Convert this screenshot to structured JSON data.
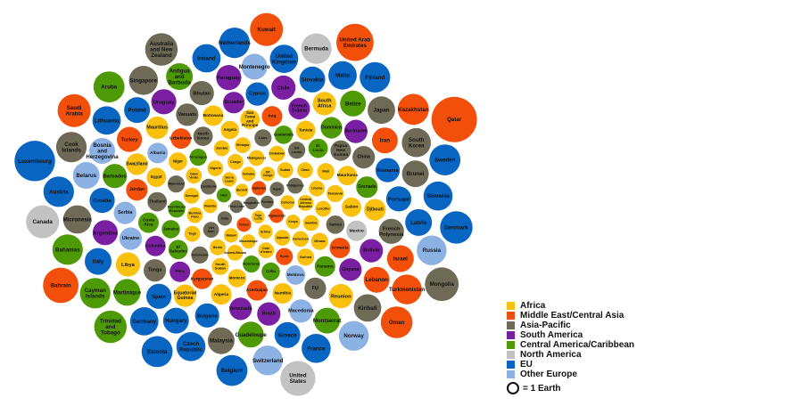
{
  "chart_data": {
    "type": "bubble",
    "legend": {
      "position": "bottom-right",
      "earth_label": "= 1 Earth",
      "regions": [
        {
          "key": "africa",
          "name": "Africa",
          "color": "#F9C10E"
        },
        {
          "key": "mideast",
          "name": "Middle East/Central Asia",
          "color": "#F2500A"
        },
        {
          "key": "asia",
          "name": "Asia-Pacific",
          "color": "#6E6A55"
        },
        {
          "key": "sa",
          "name": "South America",
          "color": "#7A1FA2"
        },
        {
          "key": "ca",
          "name": "Central America/Caribbean",
          "color": "#4E9A06"
        },
        {
          "key": "na",
          "name": "North America",
          "color": "#C2C2C2"
        },
        {
          "key": "eu",
          "name": "EU",
          "color": "#0865C2"
        },
        {
          "key": "oeu",
          "name": "Other Europe",
          "color": "#8CB1E3"
        }
      ]
    },
    "bubbles": [
      {
        "name": "Qatar",
        "region": "mideast",
        "size": 4.9
      },
      {
        "name": "Bahrain",
        "region": "mideast",
        "size": 3.0
      },
      {
        "name": "United Arab Emirates",
        "region": "mideast",
        "size": 3.3
      },
      {
        "name": "Kuwait",
        "region": "mideast",
        "size": 2.6
      },
      {
        "name": "Saudi Arabia",
        "region": "mideast",
        "size": 2.6
      },
      {
        "name": "Kazakhstan",
        "region": "mideast",
        "size": 2.3
      },
      {
        "name": "Oman",
        "region": "mideast",
        "size": 2.4
      },
      {
        "name": "Turkmenistan",
        "region": "mideast",
        "size": 2.1
      },
      {
        "name": "Israel",
        "region": "mideast",
        "size": 1.7
      },
      {
        "name": "Iran",
        "region": "mideast",
        "size": 1.6
      },
      {
        "name": "Lebanon",
        "region": "mideast",
        "size": 1.6
      },
      {
        "name": "Turkey",
        "region": "mideast",
        "size": 1.5
      },
      {
        "name": "Armenia",
        "region": "mideast",
        "size": 1.0
      },
      {
        "name": "Kyrgyzstan",
        "region": "mideast",
        "size": 1.0
      },
      {
        "name": "Uzbekistan",
        "region": "mideast",
        "size": 1.0
      },
      {
        "name": "Azerbaijan",
        "region": "mideast",
        "size": 1.0
      },
      {
        "name": "Jordan",
        "region": "mideast",
        "size": 1.1
      },
      {
        "name": "Iraq",
        "region": "mideast",
        "size": 1.0
      },
      {
        "name": "Syria",
        "region": "mideast",
        "size": 0.7
      },
      {
        "name": "Tajikistan",
        "region": "mideast",
        "size": 0.5
      },
      {
        "name": "Yemen",
        "region": "mideast",
        "size": 0.5
      },
      {
        "name": "Afghanistan",
        "region": "mideast",
        "size": 0.5
      },
      {
        "name": "Aruba",
        "region": "ca",
        "size": 2.3
      },
      {
        "name": "Trinidad and Tobago",
        "region": "ca",
        "size": 2.5
      },
      {
        "name": "Cayman Islands",
        "region": "ca",
        "size": 2.2
      },
      {
        "name": "Bahamas",
        "region": "ca",
        "size": 2.2
      },
      {
        "name": "Belize",
        "region": "ca",
        "size": 1.6
      },
      {
        "name": "Barbados",
        "region": "ca",
        "size": 1.4
      },
      {
        "name": "Guadeloupe",
        "region": "ca",
        "size": 1.6
      },
      {
        "name": "Martinique",
        "region": "ca",
        "size": 1.7
      },
      {
        "name": "Montserrat",
        "region": "ca",
        "size": 1.6
      },
      {
        "name": "Antigua and Barbuda",
        "region": "ca",
        "size": 1.7
      },
      {
        "name": "Grenada",
        "region": "ca",
        "size": 1.1
      },
      {
        "name": "Panama",
        "region": "ca",
        "size": 1.0
      },
      {
        "name": "Dominica",
        "region": "ca",
        "size": 1.1
      },
      {
        "name": "Costa Rica",
        "region": "ca",
        "size": 1.0
      },
      {
        "name": "Cuba",
        "region": "ca",
        "size": 0.8
      },
      {
        "name": "El Salvador",
        "region": "ca",
        "size": 0.9
      },
      {
        "name": "St. Lucia",
        "region": "ca",
        "size": 0.9
      },
      {
        "name": "Jamaica",
        "region": "ca",
        "size": 0.8
      },
      {
        "name": "Guatemala",
        "region": "ca",
        "size": 0.8
      },
      {
        "name": "Honduras",
        "region": "ca",
        "size": 0.7
      },
      {
        "name": "Haiti",
        "region": "ca",
        "size": 0.5
      },
      {
        "name": "Dominican Republic",
        "region": "ca",
        "size": 0.7
      },
      {
        "name": "Nicaragua",
        "region": "ca",
        "size": 0.7
      },
      {
        "name": "Australia and New Zealand",
        "region": "asia",
        "size": 2.5
      },
      {
        "name": "Cook Islands",
        "region": "asia",
        "size": 2.2
      },
      {
        "name": "Japan",
        "region": "asia",
        "size": 1.8
      },
      {
        "name": "Micronesia",
        "region": "asia",
        "size": 1.9
      },
      {
        "name": "Brunei",
        "region": "asia",
        "size": 1.7
      },
      {
        "name": "Malaysia",
        "region": "asia",
        "size": 1.7
      },
      {
        "name": "South Korea",
        "region": "asia",
        "size": 2.0
      },
      {
        "name": "Bhutan",
        "region": "asia",
        "size": 1.4
      },
      {
        "name": "Kiribati",
        "region": "asia",
        "size": 1.8
      },
      {
        "name": "French Polynesia",
        "region": "asia",
        "size": 1.5
      },
      {
        "name": "Singapore",
        "region": "asia",
        "size": 2.0
      },
      {
        "name": "Fiji",
        "region": "asia",
        "size": 1.1
      },
      {
        "name": "Vanuatu",
        "region": "asia",
        "size": 1.2
      },
      {
        "name": "China",
        "region": "asia",
        "size": 1.2
      },
      {
        "name": "Tonga",
        "region": "asia",
        "size": 1.2
      },
      {
        "name": "North Korea",
        "region": "asia",
        "size": 0.9
      },
      {
        "name": "Thailand",
        "region": "asia",
        "size": 0.9
      },
      {
        "name": "Papua New Guinea",
        "region": "asia",
        "size": 1.0
      },
      {
        "name": "Sri Lanka",
        "region": "asia",
        "size": 0.7
      },
      {
        "name": "Mongolia",
        "region": "asia",
        "size": 2.7
      },
      {
        "name": "Samoa",
        "region": "asia",
        "size": 0.8
      },
      {
        "name": "Myanmar",
        "region": "asia",
        "size": 0.7
      },
      {
        "name": "Laos",
        "region": "asia",
        "size": 0.7
      },
      {
        "name": "Indonesia",
        "region": "asia",
        "size": 0.7
      },
      {
        "name": "Nepal",
        "region": "asia",
        "size": 0.5
      },
      {
        "name": "India",
        "region": "asia",
        "size": 0.5
      },
      {
        "name": "Bangladesh",
        "region": "asia",
        "size": 0.4
      },
      {
        "name": "Pakistan",
        "region": "asia",
        "size": 0.4
      },
      {
        "name": "Timor-Leste",
        "region": "asia",
        "size": 0.4
      },
      {
        "name": "Cambodia",
        "region": "asia",
        "size": 0.6
      },
      {
        "name": "Philippines",
        "region": "asia",
        "size": 0.6
      },
      {
        "name": "Viet Nam",
        "region": "asia",
        "size": 0.6
      },
      {
        "name": "Lithuania",
        "region": "eu",
        "size": 1.9
      },
      {
        "name": "United Kingdom",
        "region": "eu",
        "size": 1.9
      },
      {
        "name": "Czech Republic",
        "region": "eu",
        "size": 2.0
      },
      {
        "name": "Latvia",
        "region": "eu",
        "size": 1.7
      },
      {
        "name": "Germany",
        "region": "eu",
        "size": 1.9
      },
      {
        "name": "Malta",
        "region": "eu",
        "size": 1.9
      },
      {
        "name": "Hungary",
        "region": "eu",
        "size": 1.6
      },
      {
        "name": "Netherlands",
        "region": "eu",
        "size": 2.2
      },
      {
        "name": "Poland",
        "region": "eu",
        "size": 1.6
      },
      {
        "name": "Slovakia",
        "region": "eu",
        "size": 1.6
      },
      {
        "name": "Austria",
        "region": "eu",
        "size": 2.2
      },
      {
        "name": "Ireland",
        "region": "eu",
        "size": 1.9
      },
      {
        "name": "Spain",
        "region": "eu",
        "size": 1.5
      },
      {
        "name": "Denmark",
        "region": "eu",
        "size": 2.5
      },
      {
        "name": "France",
        "region": "eu",
        "size": 2.0
      },
      {
        "name": "Portugal",
        "region": "eu",
        "size": 1.5
      },
      {
        "name": "Romania",
        "region": "eu",
        "size": 1.4
      },
      {
        "name": "Bulgaria",
        "region": "eu",
        "size": 1.4
      },
      {
        "name": "Slovenia",
        "region": "eu",
        "size": 2.0
      },
      {
        "name": "Sweden",
        "region": "eu",
        "size": 2.3
      },
      {
        "name": "Cyprus",
        "region": "eu",
        "size": 1.3
      },
      {
        "name": "Italy",
        "region": "eu",
        "size": 1.7
      },
      {
        "name": "Belgium",
        "region": "eu",
        "size": 2.3
      },
      {
        "name": "Greece",
        "region": "eu",
        "size": 1.6
      },
      {
        "name": "Finland",
        "region": "eu",
        "size": 2.2
      },
      {
        "name": "Croatia",
        "region": "eu",
        "size": 1.5
      },
      {
        "name": "Estonia",
        "region": "eu",
        "size": 2.3
      },
      {
        "name": "Luxembourg",
        "region": "eu",
        "size": 3.9
      },
      {
        "name": "Uruguay",
        "region": "sa",
        "size": 1.5
      },
      {
        "name": "Argentina",
        "region": "sa",
        "size": 1.5
      },
      {
        "name": "Paraguay",
        "region": "sa",
        "size": 1.5
      },
      {
        "name": "Bolivia",
        "region": "sa",
        "size": 1.3
      },
      {
        "name": "Chile",
        "region": "sa",
        "size": 1.4
      },
      {
        "name": "Guyana",
        "region": "sa",
        "size": 1.2
      },
      {
        "name": "Brazil",
        "region": "sa",
        "size": 1.3
      },
      {
        "name": "Venezuela",
        "region": "sa",
        "size": 1.2
      },
      {
        "name": "Suriname",
        "region": "sa",
        "size": 1.3
      },
      {
        "name": "Ecuador",
        "region": "sa",
        "size": 1.1
      },
      {
        "name": "Peru",
        "region": "sa",
        "size": 1.0
      },
      {
        "name": "Colombia",
        "region": "sa",
        "size": 1.0
      },
      {
        "name": "French Guiana",
        "region": "sa",
        "size": 1.1
      },
      {
        "name": "Mexico",
        "region": "na",
        "size": 1.0
      },
      {
        "name": "Bermuda",
        "region": "na",
        "size": 2.2
      },
      {
        "name": "Canada",
        "region": "na",
        "size": 2.6
      },
      {
        "name": "United States",
        "region": "na",
        "size": 2.9
      },
      {
        "name": "Russia",
        "region": "oeu",
        "size": 2.1
      },
      {
        "name": "Norway",
        "region": "oeu",
        "size": 2.1
      },
      {
        "name": "Switzerland",
        "region": "oeu",
        "size": 2.1
      },
      {
        "name": "Belarus",
        "region": "oeu",
        "size": 1.7
      },
      {
        "name": "Macedonia",
        "region": "oeu",
        "size": 1.3
      },
      {
        "name": "Albania",
        "region": "oeu",
        "size": 1.0
      },
      {
        "name": "Bosnia and Herzegovina",
        "region": "oeu",
        "size": 1.6
      },
      {
        "name": "Montenegro",
        "region": "oeu",
        "size": 1.6
      },
      {
        "name": "Serbia",
        "region": "oeu",
        "size": 1.2
      },
      {
        "name": "Ukraine",
        "region": "oeu",
        "size": 1.2
      },
      {
        "name": "Moldova",
        "region": "oeu",
        "size": 0.9
      },
      {
        "name": "Somalia",
        "region": "africa",
        "size": 0.5
      },
      {
        "name": "Congo",
        "region": "africa",
        "size": 0.6
      },
      {
        "name": "Sudan",
        "region": "africa",
        "size": 0.6
      },
      {
        "name": "Uganda",
        "region": "africa",
        "size": 0.6
      },
      {
        "name": "Sierra Leone",
        "region": "africa",
        "size": 0.5
      },
      {
        "name": "Madagascar",
        "region": "africa",
        "size": 0.6
      },
      {
        "name": "Central African Republic",
        "region": "africa",
        "size": 0.6
      },
      {
        "name": "Nigeria",
        "region": "africa",
        "size": 0.6
      },
      {
        "name": "Comoros",
        "region": "africa",
        "size": 0.5
      },
      {
        "name": "Togo Lesta",
        "region": "africa",
        "size": 0.4
      },
      {
        "name": "Burundi",
        "region": "africa",
        "size": 0.4
      },
      {
        "name": "Cote d'Ivoire",
        "region": "africa",
        "size": 0.6
      },
      {
        "name": "Eritrea",
        "region": "africa",
        "size": 0.5
      },
      {
        "name": "DR Congo",
        "region": "africa",
        "size": 0.5
      },
      {
        "name": "Burkina Faso",
        "region": "africa",
        "size": 0.6
      },
      {
        "name": "Rwanda",
        "region": "africa",
        "size": 0.5
      },
      {
        "name": "Malawi",
        "region": "africa",
        "size": 0.5
      },
      {
        "name": "Mozambique",
        "region": "africa",
        "size": 0.5
      },
      {
        "name": "Kenya",
        "region": "africa",
        "size": 0.5
      },
      {
        "name": "Senegal",
        "region": "africa",
        "size": 0.6
      },
      {
        "name": "Guinea-Bissau",
        "region": "africa",
        "size": 0.6
      },
      {
        "name": "Benin",
        "region": "africa",
        "size": 0.6
      },
      {
        "name": "Gambia",
        "region": "africa",
        "size": 0.6
      },
      {
        "name": "Zimbabwe",
        "region": "africa",
        "size": 0.6
      },
      {
        "name": "Cameroon",
        "region": "africa",
        "size": 0.6
      },
      {
        "name": "Cabo Verde",
        "region": "africa",
        "size": 0.6
      },
      {
        "name": "Chad",
        "region": "africa",
        "size": 0.6
      },
      {
        "name": "Liberia",
        "region": "africa",
        "size": 0.6
      },
      {
        "name": "Togo",
        "region": "africa",
        "size": 0.6
      },
      {
        "name": "Ethiopia",
        "region": "africa",
        "size": 0.6
      },
      {
        "name": "Zambia",
        "region": "africa",
        "size": 0.6
      },
      {
        "name": "South Sudan",
        "region": "africa",
        "size": 0.7
      },
      {
        "name": "Ghana",
        "region": "africa",
        "size": 0.7
      },
      {
        "name": "Lesotho",
        "region": "africa",
        "size": 0.6
      },
      {
        "name": "Mali",
        "region": "africa",
        "size": 0.7
      },
      {
        "name": "Tanzania",
        "region": "africa",
        "size": 0.7
      },
      {
        "name": "Guinea",
        "region": "africa",
        "size": 0.7
      },
      {
        "name": "Egypt",
        "region": "africa",
        "size": 0.9
      },
      {
        "name": "Niger",
        "region": "africa",
        "size": 0.8
      },
      {
        "name": "Angola",
        "region": "africa",
        "size": 0.8
      },
      {
        "name": "Morocco",
        "region": "africa",
        "size": 0.8
      },
      {
        "name": "Sao Tome and Principe",
        "region": "africa",
        "size": 0.9
      },
      {
        "name": "Gabon",
        "region": "africa",
        "size": 0.9
      },
      {
        "name": "South Africa",
        "region": "africa",
        "size": 1.3
      },
      {
        "name": "Mauritania",
        "region": "africa",
        "size": 0.9
      },
      {
        "name": "Equatorial Guinea",
        "region": "africa",
        "size": 1.2
      },
      {
        "name": "Djibouti",
        "region": "africa",
        "size": 1.1
      },
      {
        "name": "Botswana",
        "region": "africa",
        "size": 1.0
      },
      {
        "name": "Reunion",
        "region": "africa",
        "size": 1.4
      },
      {
        "name": "Libya",
        "region": "africa",
        "size": 1.4
      },
      {
        "name": "Mauritius",
        "region": "africa",
        "size": 1.2
      },
      {
        "name": "Tunisia",
        "region": "africa",
        "size": 0.9
      },
      {
        "name": "Namibia",
        "region": "africa",
        "size": 1.0
      },
      {
        "name": "Algeria",
        "region": "africa",
        "size": 1.0
      },
      {
        "name": "Swaziland",
        "region": "africa",
        "size": 1.1
      }
    ]
  }
}
